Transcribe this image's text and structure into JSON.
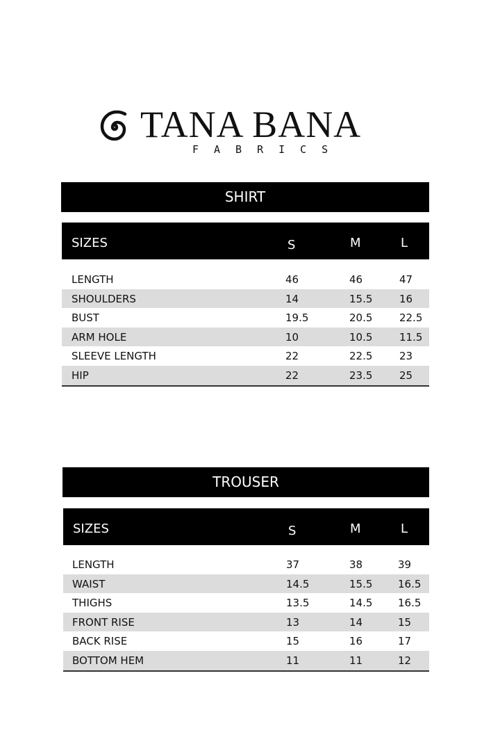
{
  "brand": {
    "name": "TANA BANA",
    "subtitle": "FABRICS",
    "logo_icon": "spiral-icon"
  },
  "tables": [
    {
      "title": "SHIRT",
      "headers": [
        "SIZES",
        "S",
        "M",
        "L"
      ],
      "rows": [
        [
          "LENGTH",
          "46",
          "46",
          "47"
        ],
        [
          "SHOULDERS",
          "14",
          "15.5",
          "16"
        ],
        [
          "BUST",
          "19.5",
          "20.5",
          "22.5"
        ],
        [
          "ARM HOLE",
          "10",
          "10.5",
          "11.5"
        ],
        [
          "SLEEVE LENGTH",
          "22",
          "22.5",
          "23"
        ],
        [
          "HIP",
          "22",
          "23.5",
          "25"
        ]
      ]
    },
    {
      "title": "TROUSER",
      "headers": [
        "SIZES",
        "S",
        "M",
        "L"
      ],
      "rows": [
        [
          "LENGTH",
          "37",
          "38",
          "39"
        ],
        [
          "WAIST",
          "14.5",
          "15.5",
          "16.5"
        ],
        [
          "THIGHS",
          "13.5",
          "14.5",
          "16.5"
        ],
        [
          "FRONT RISE",
          "13",
          "14",
          "15"
        ],
        [
          "BACK RISE",
          "15",
          "16",
          "17"
        ],
        [
          "BOTTOM HEM",
          "11",
          "11",
          "12"
        ]
      ]
    }
  ],
  "colors": {
    "header_bg": "#000000",
    "shade_row": "#dcdcdc"
  }
}
